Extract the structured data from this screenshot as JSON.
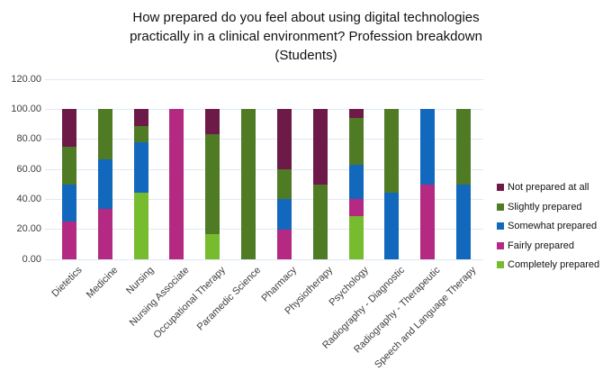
{
  "title_lines": [
    "How prepared do you feel about using digital technologies",
    "practically in a clinical environment? Profession breakdown",
    "(Students)"
  ],
  "chart_data": {
    "type": "bar",
    "stacked": true,
    "stack_unit": "percent",
    "title": "How prepared do you feel about using digital technologies practically in a clinical environment? Profession breakdown (Students)",
    "categories": [
      "Dietetics",
      "Medicine",
      "Nursing",
      "Nursing Associate",
      "Occupational Therapy",
      "Paramedic Science",
      "Pharmacy",
      "Physiotherapy",
      "Psychology",
      "Radiography - Diagnostic",
      "Radiography - Therapeutic",
      "Speech and Language Therapy"
    ],
    "series": [
      {
        "name": "Not prepared at all",
        "color": "#6E1A48",
        "values": [
          25,
          0,
          11.11,
          0,
          16.67,
          0,
          40,
          50,
          5.71,
          0,
          0,
          0
        ]
      },
      {
        "name": "Slightly prepared",
        "color": "#4E7B24",
        "values": [
          25,
          33.33,
          11.11,
          0,
          66.67,
          100,
          20,
          50,
          31.43,
          55.56,
          0,
          50
        ]
      },
      {
        "name": "Somewhat prepared",
        "color": "#1268BC",
        "values": [
          25,
          33.33,
          33.33,
          0,
          0,
          0,
          20,
          0,
          22.86,
          44.44,
          50,
          50
        ]
      },
      {
        "name": "Fairly prepared",
        "color": "#B42A82",
        "values": [
          25,
          33.33,
          0,
          100,
          0,
          0,
          20,
          0,
          11.43,
          0,
          50,
          0
        ]
      },
      {
        "name": "Completely prepared",
        "color": "#76BC2E",
        "values": [
          0,
          0,
          44.44,
          0,
          16.67,
          0,
          0,
          0,
          28.57,
          0,
          0,
          0
        ]
      }
    ],
    "stack_order_note": "bars stack bottom-to-top in reverse of legend order (Completely prepared at bottom, Not prepared at all on top)",
    "ylim": [
      0,
      120
    ],
    "ytick_step": 20,
    "ytick_decimals": 2,
    "ytick_labels": [
      "0.00",
      "20.00",
      "40.00",
      "60.00",
      "80.00",
      "100.00",
      "120.00"
    ],
    "grid": true,
    "gridline_color": "#DEEAF6",
    "legend_position": "right",
    "xlabel": "",
    "ylabel": ""
  }
}
